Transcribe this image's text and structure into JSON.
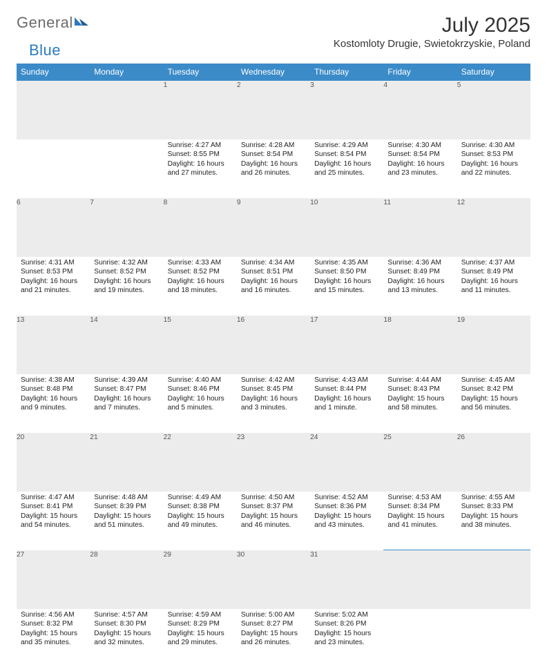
{
  "logo": {
    "text1": "General",
    "text2": "Blue"
  },
  "title": "July 2025",
  "location": "Kostomloty Drugie, Swietokrzyskie, Poland",
  "colors": {
    "header_bg": "#3b8bc9",
    "header_text": "#ffffff",
    "daynum_bg": "#ececec",
    "daynum_bordertop": "#3b8bc9",
    "body_text": "#222222",
    "logo_gray": "#6b6b6b",
    "logo_blue": "#2b7bbf"
  },
  "weekdays": [
    "Sunday",
    "Monday",
    "Tuesday",
    "Wednesday",
    "Thursday",
    "Friday",
    "Saturday"
  ],
  "weeks": [
    [
      null,
      null,
      {
        "n": "1",
        "sr": "4:27 AM",
        "ss": "8:55 PM",
        "dl": "16 hours and 27 minutes."
      },
      {
        "n": "2",
        "sr": "4:28 AM",
        "ss": "8:54 PM",
        "dl": "16 hours and 26 minutes."
      },
      {
        "n": "3",
        "sr": "4:29 AM",
        "ss": "8:54 PM",
        "dl": "16 hours and 25 minutes."
      },
      {
        "n": "4",
        "sr": "4:30 AM",
        "ss": "8:54 PM",
        "dl": "16 hours and 23 minutes."
      },
      {
        "n": "5",
        "sr": "4:30 AM",
        "ss": "8:53 PM",
        "dl": "16 hours and 22 minutes."
      }
    ],
    [
      {
        "n": "6",
        "sr": "4:31 AM",
        "ss": "8:53 PM",
        "dl": "16 hours and 21 minutes."
      },
      {
        "n": "7",
        "sr": "4:32 AM",
        "ss": "8:52 PM",
        "dl": "16 hours and 19 minutes."
      },
      {
        "n": "8",
        "sr": "4:33 AM",
        "ss": "8:52 PM",
        "dl": "16 hours and 18 minutes."
      },
      {
        "n": "9",
        "sr": "4:34 AM",
        "ss": "8:51 PM",
        "dl": "16 hours and 16 minutes."
      },
      {
        "n": "10",
        "sr": "4:35 AM",
        "ss": "8:50 PM",
        "dl": "16 hours and 15 minutes."
      },
      {
        "n": "11",
        "sr": "4:36 AM",
        "ss": "8:49 PM",
        "dl": "16 hours and 13 minutes."
      },
      {
        "n": "12",
        "sr": "4:37 AM",
        "ss": "8:49 PM",
        "dl": "16 hours and 11 minutes."
      }
    ],
    [
      {
        "n": "13",
        "sr": "4:38 AM",
        "ss": "8:48 PM",
        "dl": "16 hours and 9 minutes."
      },
      {
        "n": "14",
        "sr": "4:39 AM",
        "ss": "8:47 PM",
        "dl": "16 hours and 7 minutes."
      },
      {
        "n": "15",
        "sr": "4:40 AM",
        "ss": "8:46 PM",
        "dl": "16 hours and 5 minutes."
      },
      {
        "n": "16",
        "sr": "4:42 AM",
        "ss": "8:45 PM",
        "dl": "16 hours and 3 minutes."
      },
      {
        "n": "17",
        "sr": "4:43 AM",
        "ss": "8:44 PM",
        "dl": "16 hours and 1 minute."
      },
      {
        "n": "18",
        "sr": "4:44 AM",
        "ss": "8:43 PM",
        "dl": "15 hours and 58 minutes."
      },
      {
        "n": "19",
        "sr": "4:45 AM",
        "ss": "8:42 PM",
        "dl": "15 hours and 56 minutes."
      }
    ],
    [
      {
        "n": "20",
        "sr": "4:47 AM",
        "ss": "8:41 PM",
        "dl": "15 hours and 54 minutes."
      },
      {
        "n": "21",
        "sr": "4:48 AM",
        "ss": "8:39 PM",
        "dl": "15 hours and 51 minutes."
      },
      {
        "n": "22",
        "sr": "4:49 AM",
        "ss": "8:38 PM",
        "dl": "15 hours and 49 minutes."
      },
      {
        "n": "23",
        "sr": "4:50 AM",
        "ss": "8:37 PM",
        "dl": "15 hours and 46 minutes."
      },
      {
        "n": "24",
        "sr": "4:52 AM",
        "ss": "8:36 PM",
        "dl": "15 hours and 43 minutes."
      },
      {
        "n": "25",
        "sr": "4:53 AM",
        "ss": "8:34 PM",
        "dl": "15 hours and 41 minutes."
      },
      {
        "n": "26",
        "sr": "4:55 AM",
        "ss": "8:33 PM",
        "dl": "15 hours and 38 minutes."
      }
    ],
    [
      {
        "n": "27",
        "sr": "4:56 AM",
        "ss": "8:32 PM",
        "dl": "15 hours and 35 minutes."
      },
      {
        "n": "28",
        "sr": "4:57 AM",
        "ss": "8:30 PM",
        "dl": "15 hours and 32 minutes."
      },
      {
        "n": "29",
        "sr": "4:59 AM",
        "ss": "8:29 PM",
        "dl": "15 hours and 29 minutes."
      },
      {
        "n": "30",
        "sr": "5:00 AM",
        "ss": "8:27 PM",
        "dl": "15 hours and 26 minutes."
      },
      {
        "n": "31",
        "sr": "5:02 AM",
        "ss": "8:26 PM",
        "dl": "15 hours and 23 minutes."
      },
      null,
      null
    ]
  ],
  "labels": {
    "sunrise": "Sunrise:",
    "sunset": "Sunset:",
    "daylight": "Daylight:"
  }
}
